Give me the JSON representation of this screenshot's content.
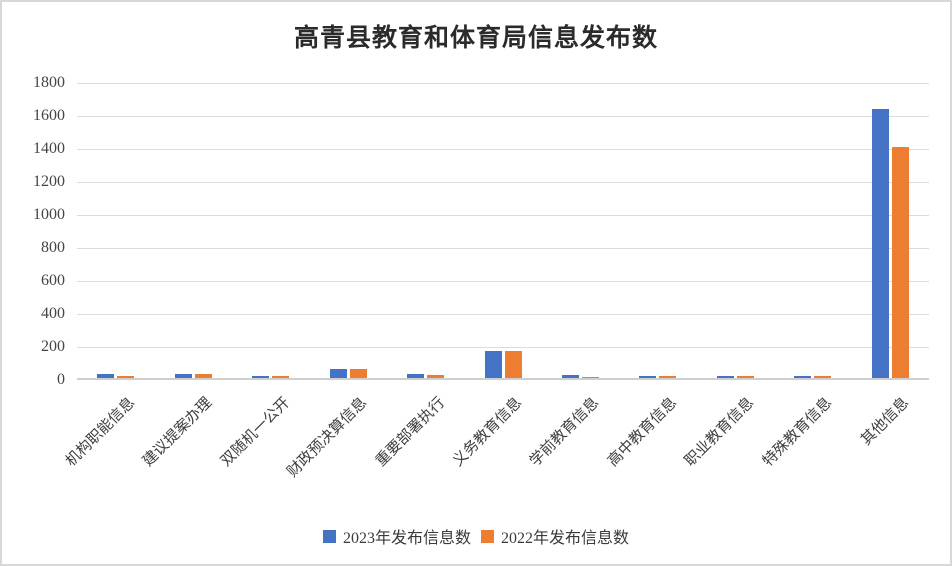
{
  "title": "高青县教育和体育局信息发布数",
  "chart_data": {
    "type": "bar",
    "title": "高青县教育和体育局信息发布数",
    "categories": [
      "机构职能信息",
      "建议提案办理",
      "双随机一公开",
      "财政预决算信息",
      "重要部署执行",
      "义务教育信息",
      "学前教育信息",
      "高中教育信息",
      "职业教育信息",
      "特殊教育信息",
      "其他信息"
    ],
    "series": [
      {
        "name": "2023年发布信息数",
        "color": "#4472C4",
        "values": [
          22,
          25,
          12,
          55,
          22,
          165,
          20,
          12,
          15,
          13,
          1630
        ]
      },
      {
        "name": "2022年发布信息数",
        "color": "#ED7D31",
        "values": [
          10,
          22,
          10,
          52,
          20,
          165,
          9,
          11,
          11,
          11,
          1400
        ]
      }
    ],
    "ylim": [
      0,
      1800
    ],
    "yticks": [
      0,
      200,
      400,
      600,
      800,
      1000,
      1200,
      1400,
      1600,
      1800
    ],
    "grid": true,
    "legend_position": "bottom",
    "xlabel": "",
    "ylabel": ""
  },
  "colors": {
    "series_2023": "#4472C4",
    "series_2022": "#ED7D31",
    "gridline": "#dcdcdc",
    "axis_line": "#cfcfcf",
    "text": "#3f3f3f",
    "title_text": "#2b2b2b",
    "background": "#ffffff",
    "frame_border": "#d8d8d8"
  }
}
